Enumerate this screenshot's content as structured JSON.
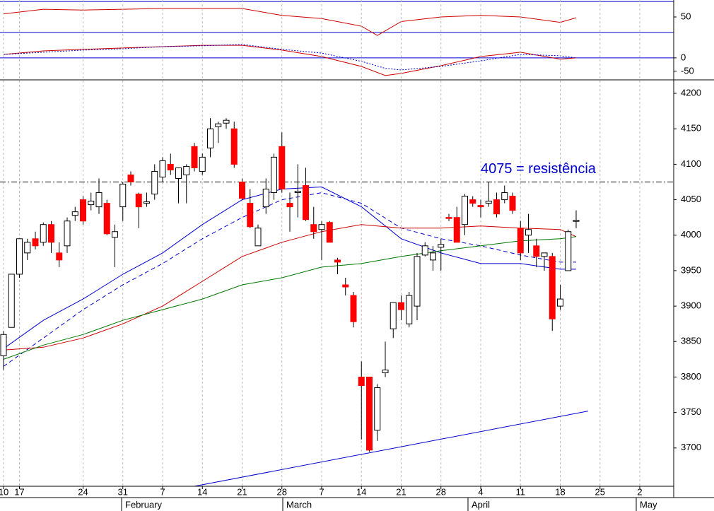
{
  "chart_data": [
    {
      "type": "rsi",
      "color": "#cc0000",
      "ylim": [
        17,
        72
      ],
      "yticks": [
        50
      ],
      "hlines": [
        30,
        70
      ],
      "x": [
        0,
        5,
        10,
        15,
        20,
        25,
        30,
        35,
        40,
        45,
        47,
        50,
        55,
        60,
        65,
        70,
        72
      ],
      "values": [
        54,
        60,
        59,
        60,
        61,
        61,
        61,
        52,
        48,
        38,
        26,
        44,
        50,
        52,
        50,
        43,
        49
      ]
    },
    {
      "type": "macd",
      "ylim": [
        -82,
        92
      ],
      "yticks": [
        0,
        -50
      ],
      "hlines": [
        0
      ],
      "series": [
        {
          "color": "#cc0000",
          "style": "solid",
          "x": [
            0,
            5,
            10,
            15,
            20,
            25,
            30,
            35,
            40,
            45,
            48,
            50,
            55,
            60,
            65,
            70,
            72
          ],
          "values": [
            13,
            26,
            32,
            37,
            42,
            47,
            47,
            29,
            5,
            -32,
            -66,
            -58,
            -29,
            5,
            21,
            -5,
            0
          ]
        },
        {
          "color": "#0000cc",
          "style": "dotted",
          "x": [
            0,
            5,
            10,
            15,
            20,
            25,
            30,
            35,
            40,
            45,
            48,
            50,
            55,
            60,
            65,
            70,
            72
          ],
          "values": [
            13,
            21,
            29,
            34,
            42,
            45,
            50,
            32,
            18,
            -13,
            -39,
            -45,
            -32,
            -11,
            13,
            8,
            0
          ]
        }
      ]
    },
    {
      "type": "candlestick",
      "ylim": [
        3646,
        4219
      ],
      "yticks": [
        3700,
        3750,
        3800,
        3850,
        3900,
        3950,
        4000,
        4050,
        4100,
        4150,
        4200
      ],
      "categories": [
        "10",
        null,
        "17",
        null,
        null,
        null,
        null,
        null,
        null,
        null,
        "24",
        null,
        null,
        null,
        null,
        "31",
        null,
        null,
        null,
        null,
        "7",
        null,
        null,
        null,
        null,
        "14",
        null,
        null,
        null,
        null,
        "21",
        null,
        null,
        null,
        null,
        "28",
        null,
        null,
        null,
        null,
        "7",
        null,
        null,
        null,
        null,
        "14",
        null,
        null,
        null,
        null,
        "21",
        null,
        null,
        null,
        null,
        "28",
        null,
        null,
        null,
        null,
        "4",
        null,
        null,
        null,
        null,
        "11",
        null,
        null,
        null,
        null,
        "18",
        null,
        null,
        null,
        null,
        "25",
        null,
        null,
        null,
        null,
        "2"
      ],
      "months": [
        "February",
        "March",
        "April",
        "May"
      ],
      "grid": true,
      "up_color": "#ffffff",
      "down_color": "#ff0000",
      "ohlc": [
        [
          3830,
          3865,
          3810,
          3860
        ],
        [
          3870,
          3945,
          3870,
          3945
        ],
        [
          3945,
          3995,
          3940,
          3995
        ],
        [
          3975,
          3995,
          3965,
          3990
        ],
        [
          3995,
          4005,
          3980,
          3985
        ],
        [
          3990,
          4018,
          3985,
          4015
        ],
        [
          4015,
          4020,
          3975,
          3990
        ],
        [
          3975,
          3990,
          3955,
          3965
        ],
        [
          3985,
          4025,
          3975,
          4020
        ],
        [
          4028,
          4040,
          4020,
          4033
        ],
        [
          4050,
          4055,
          4015,
          4020
        ],
        [
          4043,
          4060,
          4035,
          4048
        ],
        [
          4040,
          4080,
          4030,
          4060
        ],
        [
          4045,
          4050,
          4000,
          4002
        ],
        [
          3997,
          4015,
          3955,
          4005
        ],
        [
          4040,
          4075,
          4020,
          4072
        ],
        [
          4085,
          4090,
          4070,
          4075
        ],
        [
          4058,
          4060,
          4010,
          4040
        ],
        [
          4045,
          4060,
          4040,
          4047
        ],
        [
          4058,
          4100,
          4050,
          4090
        ],
        [
          4082,
          4110,
          4075,
          4105
        ],
        [
          4100,
          4115,
          4085,
          4092
        ],
        [
          4080,
          4095,
          4045,
          4095
        ],
        [
          4085,
          4100,
          4045,
          4097
        ],
        [
          4125,
          4130,
          4090,
          4095
        ],
        [
          4090,
          4115,
          4085,
          4110
        ],
        [
          4123,
          4165,
          4110,
          4150
        ],
        [
          4153,
          4160,
          4130,
          4157
        ],
        [
          4158,
          4165,
          4150,
          4162
        ],
        [
          4150,
          4160,
          4095,
          4100
        ],
        [
          4075,
          4080,
          4050,
          4052
        ],
        [
          4045,
          4065,
          4010,
          4012
        ],
        [
          3985,
          4015,
          3985,
          4010
        ],
        [
          4040,
          4080,
          4030,
          4065
        ],
        [
          4060,
          4115,
          4050,
          4110
        ],
        [
          4125,
          4145,
          4060,
          4065
        ],
        [
          4045,
          4060,
          4005,
          4040
        ],
        [
          4060,
          4100,
          4025,
          4062
        ],
        [
          4070,
          4095,
          4020,
          4022
        ],
        [
          4015,
          4040,
          3995,
          4005
        ],
        [
          4008,
          4020,
          3965,
          4015
        ],
        [
          4018,
          4020,
          3990,
          3990
        ],
        [
          3965,
          3968,
          3945,
          3962
        ],
        [
          3930,
          3940,
          3915,
          3927
        ],
        [
          3915,
          3920,
          3870,
          3878
        ],
        [
          3800,
          3822,
          3712,
          3788
        ],
        [
          3800,
          3800,
          3695,
          3697
        ],
        [
          3725,
          3790,
          3710,
          3785
        ],
        [
          3806,
          3850,
          3800,
          3810
        ],
        [
          3868,
          3905,
          3855,
          3905
        ],
        [
          3905,
          3915,
          3880,
          3895
        ],
        [
          3875,
          3920,
          3870,
          3915
        ],
        [
          3900,
          3975,
          3880,
          3970
        ],
        [
          3972,
          3990,
          3970,
          3985
        ],
        [
          3965,
          3985,
          3950,
          3975
        ],
        [
          3983,
          3995,
          3950,
          3987
        ],
        [
          4025,
          4030,
          4020,
          4024
        ],
        [
          4025,
          4040,
          3990,
          3990
        ],
        [
          4015,
          4058,
          4000,
          4055
        ],
        [
          4050,
          4055,
          4040,
          4045
        ],
        [
          4042,
          4050,
          4025,
          4040
        ],
        [
          4045,
          4075,
          4040,
          4048
        ],
        [
          4050,
          4060,
          4025,
          4030
        ],
        [
          4050,
          4070,
          4045,
          4060
        ],
        [
          4055,
          4060,
          4030,
          4035
        ],
        [
          4010,
          4020,
          3965,
          3975
        ],
        [
          4000,
          4030,
          3975,
          4008
        ],
        [
          3985,
          3995,
          3955,
          3970
        ],
        [
          3970,
          3975,
          3950,
          3975
        ],
        [
          3970,
          3975,
          3865,
          3882
        ],
        [
          3900,
          3930,
          3895,
          3910
        ],
        [
          3950,
          4008,
          3950,
          4005
        ],
        [
          4020,
          4035,
          4010,
          4021
        ],
        null,
        null,
        null,
        null,
        null,
        null,
        null,
        null
      ],
      "series": [
        {
          "color": "#0000cc",
          "style": "solid",
          "x": [
            0,
            5,
            10,
            15,
            20,
            25,
            30,
            35,
            40,
            45,
            50,
            55,
            60,
            65,
            70,
            72
          ],
          "values": [
            3840,
            3880,
            3910,
            3945,
            3975,
            4015,
            4050,
            4065,
            4068,
            4040,
            3995,
            3975,
            3960,
            3960,
            3952,
            3952
          ]
        },
        {
          "color": "#0000cc",
          "style": "dashed",
          "x": [
            0,
            5,
            10,
            15,
            20,
            25,
            30,
            35,
            40,
            45,
            50,
            55,
            60,
            65,
            70,
            72
          ],
          "values": [
            3815,
            3855,
            3895,
            3930,
            3960,
            3995,
            4025,
            4050,
            4060,
            4045,
            4010,
            3995,
            3985,
            3972,
            3962,
            3962
          ]
        },
        {
          "color": "#cc0000",
          "style": "solid",
          "x": [
            0,
            5,
            10,
            15,
            20,
            25,
            30,
            35,
            40,
            45,
            50,
            55,
            60,
            65,
            70,
            72
          ],
          "values": [
            3838,
            3842,
            3855,
            3875,
            3900,
            3935,
            3970,
            3990,
            4005,
            4015,
            4010,
            4010,
            4013,
            4010,
            4008,
            3998
          ]
        },
        {
          "color": "#007700",
          "style": "solid",
          "x": [
            0,
            5,
            10,
            15,
            20,
            25,
            30,
            35,
            40,
            45,
            50,
            55,
            60,
            65,
            70,
            72
          ],
          "values": [
            3825,
            3845,
            3860,
            3880,
            3895,
            3910,
            3930,
            3940,
            3955,
            3960,
            3970,
            3978,
            3985,
            3992,
            3995,
            3998
          ]
        },
        {
          "color": "#0000cc",
          "style": "solid",
          "x": [
            24,
            73.5
          ],
          "values": [
            3646,
            3752
          ]
        }
      ],
      "resistance": 4075,
      "annotation": "4075 = resistência"
    }
  ]
}
